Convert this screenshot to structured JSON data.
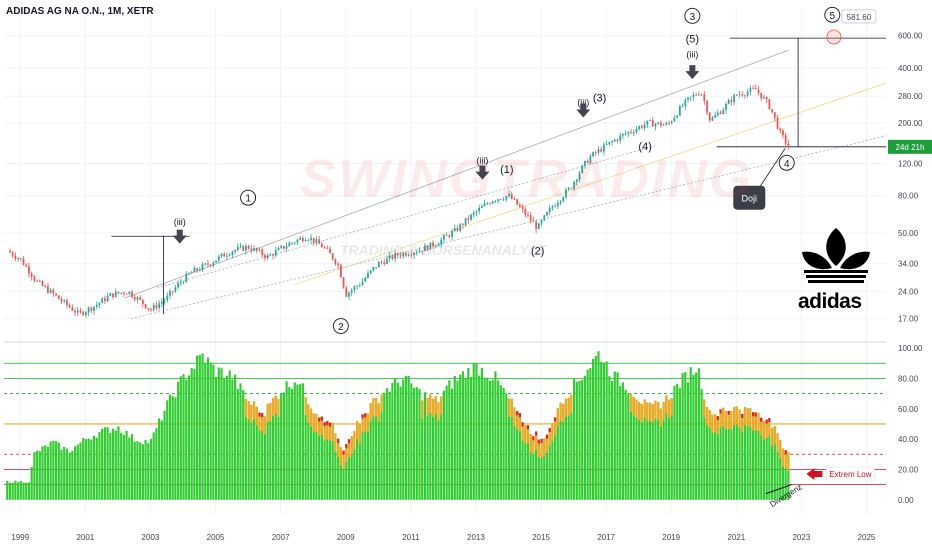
{
  "title": "ADIDAS AG NA O.N., 1M, XETR",
  "watermark": "SWINGTRADING",
  "watermark_sub": "TRADING & BÖRSENANALYST",
  "logo_text": "adidas",
  "colors": {
    "up": "#26a69a",
    "down": "#ef5350",
    "bar_green": "#2ecc2e",
    "bar_orange": "#f5a623",
    "bar_red": "#e0202a",
    "line_green": "#1aaf1a",
    "line_orange": "#f5a623",
    "line_red": "#d01020",
    "badge": "#1e9e3a",
    "grid": "#f0f3fa"
  },
  "chart_data": [
    {
      "type": "candlestick",
      "title": "ADIDAS AG NA O.N., 1M, XETR",
      "y_scale": "log",
      "ylim": [
        13,
        850
      ],
      "xlim": [
        1998.5,
        2025.6
      ],
      "y_ticks": [
        "600.00",
        "400.00",
        "280.00",
        "200.00",
        "120.00",
        "80.00",
        "50.00",
        "34.00",
        "24.00",
        "17.00"
      ],
      "x_ticks": [
        "1999",
        "2001",
        "2003",
        "2005",
        "2007",
        "2009",
        "2011",
        "2013",
        "2015",
        "2017",
        "2019",
        "2021",
        "2023",
        "2025"
      ],
      "price_path": [
        [
          1998.6,
          40
        ],
        [
          1999.0,
          36
        ],
        [
          1999.5,
          27
        ],
        [
          2000.3,
          21
        ],
        [
          2000.8,
          18
        ],
        [
          2001.3,
          20
        ],
        [
          2001.8,
          23
        ],
        [
          2002.3,
          24
        ],
        [
          2003.0,
          19
        ],
        [
          2003.5,
          22
        ],
        [
          2004.2,
          30
        ],
        [
          2004.8,
          34
        ],
        [
          2005.5,
          40
        ],
        [
          2006.0,
          42
        ],
        [
          2006.6,
          37
        ],
        [
          2007.3,
          44
        ],
        [
          2007.8,
          48
        ],
        [
          2008.3,
          42
        ],
        [
          2008.75,
          34
        ],
        [
          2009.0,
          23
        ],
        [
          2009.5,
          27
        ],
        [
          2010.0,
          34
        ],
        [
          2010.6,
          38
        ],
        [
          2011.2,
          40
        ],
        [
          2011.8,
          44
        ],
        [
          2012.4,
          52
        ],
        [
          2013.0,
          65
        ],
        [
          2013.5,
          76
        ],
        [
          2014.0,
          80
        ],
        [
          2014.5,
          64
        ],
        [
          2014.9,
          53
        ],
        [
          2015.3,
          68
        ],
        [
          2015.9,
          88
        ],
        [
          2016.5,
          130
        ],
        [
          2017.0,
          150
        ],
        [
          2017.6,
          175
        ],
        [
          2018.3,
          200
        ],
        [
          2018.9,
          195
        ],
        [
          2019.5,
          265
        ],
        [
          2019.9,
          300
        ],
        [
          2020.2,
          205
        ],
        [
          2020.6,
          240
        ],
        [
          2021.0,
          285
        ],
        [
          2021.6,
          305
        ],
        [
          2022.0,
          250
        ],
        [
          2022.35,
          175
        ],
        [
          2022.6,
          148
        ]
      ],
      "last_price_label": "24d 21h",
      "target_label": "581.60",
      "wave_labels": [
        {
          "text": "1",
          "circled": true
        },
        {
          "text": "2",
          "circled": true
        },
        {
          "text": "3",
          "circled": true
        },
        {
          "text": "4",
          "circled": true
        },
        {
          "text": "5",
          "circled": true
        },
        {
          "text": "(1)"
        },
        {
          "text": "(2)"
        },
        {
          "text": "(3)"
        },
        {
          "text": "(4)"
        },
        {
          "text": "(5)"
        },
        {
          "text": "(iii)"
        },
        {
          "text": "(iii)"
        },
        {
          "text": "(iii)"
        },
        {
          "text": "(iii)"
        }
      ],
      "annotation": "Doji"
    },
    {
      "type": "bar",
      "ylim": [
        -10,
        102
      ],
      "y_ticks": [
        "100.00",
        "80.00",
        "60.00",
        "40.00",
        "20.00",
        "0.00"
      ],
      "horizontal_levels": [
        {
          "value": 90,
          "style": "green"
        },
        {
          "value": 80,
          "style": "green"
        },
        {
          "value": 70,
          "style": "green-dashed"
        },
        {
          "value": 50,
          "style": "orange"
        },
        {
          "value": 30,
          "style": "red-dashed"
        },
        {
          "value": 20,
          "style": "red"
        },
        {
          "value": 10,
          "style": "red"
        }
      ],
      "oscillator_path": [
        [
          1998.6,
          12
        ],
        [
          1999.3,
          12
        ],
        [
          1999.4,
          30
        ],
        [
          2000.0,
          38
        ],
        [
          2000.5,
          32
        ],
        [
          2001.0,
          40
        ],
        [
          2001.5,
          45
        ],
        [
          2002.0,
          48
        ],
        [
          2002.5,
          40
        ],
        [
          2003.0,
          38
        ],
        [
          2003.5,
          62
        ],
        [
          2004.0,
          80
        ],
        [
          2004.6,
          95
        ],
        [
          2005.0,
          85
        ],
        [
          2005.5,
          82
        ],
        [
          2006.0,
          65
        ],
        [
          2006.5,
          58
        ],
        [
          2007.0,
          72
        ],
        [
          2007.5,
          80
        ],
        [
          2008.0,
          60
        ],
        [
          2008.6,
          48
        ],
        [
          2008.9,
          30
        ],
        [
          2009.2,
          45
        ],
        [
          2009.7,
          60
        ],
        [
          2010.2,
          72
        ],
        [
          2010.8,
          80
        ],
        [
          2011.3,
          70
        ],
        [
          2011.8,
          65
        ],
        [
          2012.3,
          78
        ],
        [
          2013.0,
          88
        ],
        [
          2013.6,
          80
        ],
        [
          2014.2,
          60
        ],
        [
          2014.7,
          45
        ],
        [
          2015.1,
          40
        ],
        [
          2015.6,
          65
        ],
        [
          2016.2,
          80
        ],
        [
          2016.8,
          97
        ],
        [
          2017.2,
          82
        ],
        [
          2017.8,
          72
        ],
        [
          2018.3,
          60
        ],
        [
          2018.8,
          65
        ],
        [
          2019.3,
          78
        ],
        [
          2019.8,
          88
        ],
        [
          2020.2,
          55
        ],
        [
          2020.7,
          60
        ],
        [
          2021.2,
          60
        ],
        [
          2021.7,
          58
        ],
        [
          2022.1,
          50
        ],
        [
          2022.4,
          35
        ],
        [
          2022.6,
          30
        ]
      ],
      "annotations": [
        "Extrem Low",
        "Divergenz"
      ]
    }
  ]
}
